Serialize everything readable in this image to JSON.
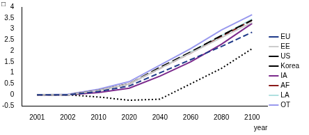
{
  "chart_data": {
    "type": "line",
    "ylabel": "□",
    "xlabel": "year",
    "categories": [
      "2001",
      "2002",
      "2010",
      "2020",
      "2040",
      "2060",
      "2080",
      "2100"
    ],
    "ylim": [
      -0.5,
      4
    ],
    "yticks": [
      -0.5,
      0,
      0.5,
      1,
      1.5,
      2,
      2.5,
      3,
      3.5,
      4
    ],
    "grid": false,
    "legend": "right",
    "series": [
      {
        "name": "EU",
        "color": "#1f3a8a",
        "line_style": "dashed",
        "values": [
          0,
          0,
          0.15,
          0.4,
          1.0,
          1.6,
          2.2,
          2.85
        ]
      },
      {
        "name": "EE",
        "color": "#cccccc",
        "line_style": "solid",
        "values": [
          0,
          0,
          0.2,
          0.5,
          1.2,
          1.9,
          2.6,
          3.3
        ]
      },
      {
        "name": "US",
        "color": "#000000",
        "line_style": "longdash",
        "values": [
          0,
          0,
          0.2,
          0.5,
          1.25,
          1.95,
          2.7,
          3.4
        ]
      },
      {
        "name": "Korea",
        "color": "#000000",
        "line_style": "dotted",
        "values": [
          0,
          0,
          -0.1,
          -0.25,
          -0.2,
          0.5,
          1.2,
          2.1
        ]
      },
      {
        "name": "IA",
        "color": "#7b2a8c",
        "line_style": "solid",
        "values": [
          0,
          0,
          0.1,
          0.3,
          0.85,
          1.5,
          2.3,
          3.25
        ]
      },
      {
        "name": "AF",
        "color": "#8b1a1a",
        "line_style": "dashed",
        "values": [
          0,
          0,
          0.2,
          0.5,
          1.2,
          1.9,
          2.65,
          3.4
        ]
      },
      {
        "name": "LA",
        "color": "#b0e0e0",
        "line_style": "solid",
        "values": [
          0,
          0,
          0.2,
          0.5,
          1.2,
          1.95,
          2.7,
          3.45
        ]
      },
      {
        "name": "OT",
        "color": "#9999ee",
        "line_style": "solid",
        "values": [
          0,
          0.02,
          0.25,
          0.6,
          1.35,
          2.1,
          2.95,
          3.65
        ]
      }
    ]
  }
}
